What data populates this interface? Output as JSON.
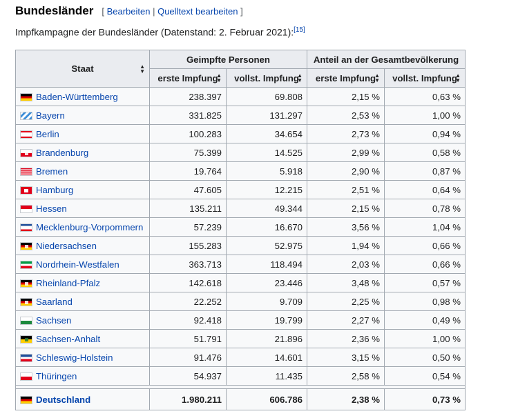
{
  "heading": "Bundesländer",
  "edit_links": {
    "open": "[ ",
    "edit": "Bearbeiten",
    "sep": " | ",
    "source": "Quelltext bearbeiten",
    "close": " ]"
  },
  "caption": "Impfkampagne der Bundesländer (Datenstand: 2. Februar 2021):",
  "caption_ref": "[15]",
  "table": {
    "header_staat": "Staat",
    "group_persons": "Geimpfte Personen",
    "group_share": "Anteil an der Gesamtbevölkerung",
    "sub": [
      "erste Impfung",
      "vollst. Impfung",
      "erste Impfung",
      "vollst. Impfung"
    ],
    "rows": [
      {
        "name": "Baden-Württemberg",
        "flag": "de",
        "first": "238.397",
        "full": "69.808",
        "first_pct": "2,15 %",
        "full_pct": "0,63 %"
      },
      {
        "name": "Bayern",
        "flag": "by",
        "first": "331.825",
        "full": "131.297",
        "first_pct": "2,53 %",
        "full_pct": "1,00 %"
      },
      {
        "name": "Berlin",
        "flag": "be",
        "first": "100.283",
        "full": "34.654",
        "first_pct": "2,73 %",
        "full_pct": "0,94 %"
      },
      {
        "name": "Brandenburg",
        "flag": "bb",
        "first": "75.399",
        "full": "14.525",
        "first_pct": "2,99 %",
        "full_pct": "0,58 %"
      },
      {
        "name": "Bremen",
        "flag": "hb",
        "first": "19.764",
        "full": "5.918",
        "first_pct": "2,90 %",
        "full_pct": "0,87 %"
      },
      {
        "name": "Hamburg",
        "flag": "hh",
        "first": "47.605",
        "full": "12.215",
        "first_pct": "2,51 %",
        "full_pct": "0,64 %"
      },
      {
        "name": "Hessen",
        "flag": "he",
        "first": "135.211",
        "full": "49.344",
        "first_pct": "2,15 %",
        "full_pct": "0,78 %"
      },
      {
        "name": "Mecklenburg-Vorpommern",
        "flag": "mv",
        "first": "57.239",
        "full": "16.670",
        "first_pct": "3,56 %",
        "full_pct": "1,04 %"
      },
      {
        "name": "Niedersachsen",
        "flag": "ni",
        "first": "155.283",
        "full": "52.975",
        "first_pct": "1,94 %",
        "full_pct": "0,66 %"
      },
      {
        "name": "Nordrhein-Westfalen",
        "flag": "nw",
        "first": "363.713",
        "full": "118.494",
        "first_pct": "2,03 %",
        "full_pct": "0,66 %"
      },
      {
        "name": "Rheinland-Pfalz",
        "flag": "rp",
        "first": "142.618",
        "full": "23.446",
        "first_pct": "3,48 %",
        "full_pct": "0,57 %"
      },
      {
        "name": "Saarland",
        "flag": "sl",
        "first": "22.252",
        "full": "9.709",
        "first_pct": "2,25 %",
        "full_pct": "0,98 %"
      },
      {
        "name": "Sachsen",
        "flag": "sn",
        "first": "92.418",
        "full": "19.799",
        "first_pct": "2,27 %",
        "full_pct": "0,49 %"
      },
      {
        "name": "Sachsen-Anhalt",
        "flag": "st",
        "first": "51.791",
        "full": "21.896",
        "first_pct": "2,36 %",
        "full_pct": "1,00 %"
      },
      {
        "name": "Schleswig-Holstein",
        "flag": "sh",
        "first": "91.476",
        "full": "14.601",
        "first_pct": "3,15 %",
        "full_pct": "0,50 %"
      },
      {
        "name": "Thüringen",
        "flag": "th",
        "first": "54.937",
        "full": "11.435",
        "first_pct": "2,58 %",
        "full_pct": "0,54 %"
      }
    ],
    "total": {
      "name": "Deutschland",
      "flag": "de",
      "first": "1.980.211",
      "full": "606.786",
      "first_pct": "2,38 %",
      "full_pct": "0,73 %"
    }
  },
  "colors": {
    "link": "#0645ad",
    "header_bg": "#eaecf0",
    "cell_bg": "#f8f9fa",
    "border": "#a2a9b1"
  }
}
